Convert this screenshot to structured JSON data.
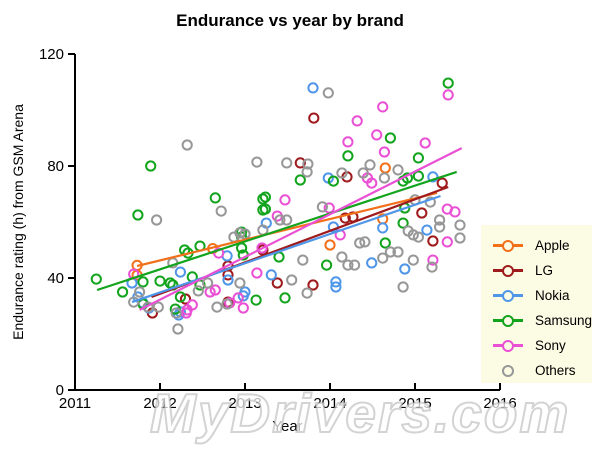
{
  "watermark": {
    "text": "MyDrivers.com"
  },
  "chart_data": {
    "type": "scatter",
    "title": "Endurance vs year by brand",
    "xlabel": "Year",
    "ylabel": "Endurance rating (h) from GSM Arena",
    "xlim": [
      2011,
      2016
    ],
    "ylim": [
      0,
      120
    ],
    "x_ticks": [
      "2011",
      "2012",
      "2013",
      "2014",
      "2015",
      "2016"
    ],
    "y_ticks": [
      "0",
      "40",
      "80",
      "120"
    ],
    "grid": false,
    "marker": "open-circle",
    "legend_position": "right",
    "legend_bg": "#FCFBE4",
    "series": [
      {
        "name": "Apple",
        "color": "#F3701B",
        "legend_has_line": true,
        "trend": [
          [
            2011.73,
            44.3
          ],
          [
            2015.26,
            70.4
          ]
        ],
        "points": [
          [
            2011.73,
            44.5
          ],
          [
            2011.73,
            41.0
          ],
          [
            2012.62,
            50.5
          ],
          [
            2014.0,
            51.8
          ],
          [
            2014.62,
            61.1
          ],
          [
            2014.65,
            79.3
          ]
        ]
      },
      {
        "name": "LG",
        "color": "#9E1A1C",
        "legend_has_line": true,
        "trend": [
          [
            2011.9,
            33.2
          ],
          [
            2015.39,
            72.5
          ]
        ],
        "points": [
          [
            2011.91,
            27.5
          ],
          [
            2012.3,
            32.5
          ],
          [
            2012.8,
            44.3
          ],
          [
            2012.8,
            41.1
          ],
          [
            2012.8,
            31.4
          ],
          [
            2013.21,
            50.0
          ],
          [
            2013.38,
            38.2
          ],
          [
            2013.65,
            81.1
          ],
          [
            2013.8,
            37.5
          ],
          [
            2013.81,
            97.1
          ],
          [
            2014.18,
            61.4
          ],
          [
            2014.27,
            61.8
          ],
          [
            2014.2,
            76.1
          ],
          [
            2015.08,
            63.2
          ],
          [
            2015.21,
            53.2
          ],
          [
            2015.32,
            73.9
          ]
        ]
      },
      {
        "name": "Nokia",
        "color": "#4F96E8",
        "legend_has_line": true,
        "trend": [
          [
            2011.67,
            31.4
          ],
          [
            2015.3,
            69.3
          ]
        ],
        "points": [
          [
            2011.67,
            38.2
          ],
          [
            2011.74,
            33.2
          ],
          [
            2011.8,
            31.1
          ],
          [
            2011.87,
            29.3
          ],
          [
            2012.22,
            26.8
          ],
          [
            2012.24,
            42.1
          ],
          [
            2012.24,
            27.9
          ],
          [
            2012.79,
            47.9
          ],
          [
            2012.8,
            39.3
          ],
          [
            2012.98,
            33.6
          ],
          [
            2013.0,
            35.0
          ],
          [
            2013.25,
            59.6
          ],
          [
            2013.31,
            41.1
          ],
          [
            2013.8,
            107.9
          ],
          [
            2013.98,
            75.7
          ],
          [
            2014.04,
            58.2
          ],
          [
            2014.07,
            38.6
          ],
          [
            2014.07,
            36.8
          ],
          [
            2014.49,
            45.4
          ],
          [
            2014.62,
            57.9
          ],
          [
            2014.88,
            43.2
          ],
          [
            2015.14,
            57.1
          ],
          [
            2015.21,
            76.1
          ]
        ]
      },
      {
        "name": "Samsung",
        "color": "#12A41D",
        "legend_has_line": true,
        "trend": [
          [
            2011.26,
            35.7
          ],
          [
            2015.49,
            77.9
          ]
        ],
        "points": [
          [
            2011.25,
            39.6
          ],
          [
            2011.56,
            35.0
          ],
          [
            2011.74,
            62.5
          ],
          [
            2011.8,
            38.6
          ],
          [
            2011.8,
            30.7
          ],
          [
            2011.89,
            80.0
          ],
          [
            2012.0,
            38.9
          ],
          [
            2012.12,
            38.2
          ],
          [
            2012.15,
            37.5
          ],
          [
            2012.18,
            28.9
          ],
          [
            2012.24,
            33.2
          ],
          [
            2012.29,
            50.0
          ],
          [
            2012.33,
            48.9
          ],
          [
            2012.38,
            40.4
          ],
          [
            2012.47,
            51.4
          ],
          [
            2012.47,
            37.5
          ],
          [
            2012.65,
            68.6
          ],
          [
            2012.96,
            56.4
          ],
          [
            2012.96,
            54.6
          ],
          [
            2012.96,
            50.7
          ],
          [
            2012.98,
            48.2
          ],
          [
            2013.13,
            32.1
          ],
          [
            2013.21,
            68.2
          ],
          [
            2013.21,
            64.3
          ],
          [
            2013.24,
            68.9
          ],
          [
            2013.24,
            64.6
          ],
          [
            2013.4,
            47.5
          ],
          [
            2013.47,
            32.9
          ],
          [
            2013.65,
            75.0
          ],
          [
            2013.96,
            44.6
          ],
          [
            2014.04,
            74.6
          ],
          [
            2014.21,
            83.6
          ],
          [
            2014.65,
            52.5
          ],
          [
            2014.71,
            90.0
          ],
          [
            2014.86,
            74.6
          ],
          [
            2014.86,
            59.6
          ],
          [
            2014.88,
            65.0
          ],
          [
            2014.91,
            75.7
          ],
          [
            2015.04,
            82.9
          ],
          [
            2015.04,
            76.4
          ],
          [
            2015.39,
            109.6
          ]
        ]
      },
      {
        "name": "Sony",
        "color": "#EA50D4",
        "legend_has_line": true,
        "trend": [
          [
            2011.76,
            28.6
          ],
          [
            2015.55,
            86.4
          ]
        ],
        "points": [
          [
            2011.69,
            41.4
          ],
          [
            2012.31,
            27.5
          ],
          [
            2012.32,
            28.6
          ],
          [
            2012.38,
            30.4
          ],
          [
            2012.59,
            35.0
          ],
          [
            2012.65,
            35.7
          ],
          [
            2012.69,
            48.9
          ],
          [
            2012.82,
            31.1
          ],
          [
            2012.92,
            32.9
          ],
          [
            2012.98,
            29.3
          ],
          [
            2013.14,
            41.8
          ],
          [
            2013.2,
            50.7
          ],
          [
            2013.38,
            62.1
          ],
          [
            2013.47,
            67.9
          ],
          [
            2013.99,
            65.0
          ],
          [
            2014.12,
            55.4
          ],
          [
            2014.21,
            88.6
          ],
          [
            2014.32,
            96.1
          ],
          [
            2014.44,
            75.7
          ],
          [
            2014.49,
            73.9
          ],
          [
            2014.55,
            91.1
          ],
          [
            2014.62,
            101.1
          ],
          [
            2014.64,
            85.0
          ],
          [
            2015.12,
            88.2
          ],
          [
            2015.21,
            46.4
          ],
          [
            2015.38,
            64.6
          ],
          [
            2015.38,
            52.9
          ],
          [
            2015.39,
            105.4
          ],
          [
            2015.47,
            63.6
          ]
        ]
      },
      {
        "name": "Others",
        "color": "#979797",
        "legend_has_line": false,
        "trend": null,
        "points": [
          [
            2011.69,
            31.4
          ],
          [
            2011.76,
            35.0
          ],
          [
            2011.86,
            29.6
          ],
          [
            2011.96,
            60.7
          ],
          [
            2011.98,
            29.6
          ],
          [
            2012.15,
            45.4
          ],
          [
            2012.19,
            27.5
          ],
          [
            2012.21,
            21.8
          ],
          [
            2012.32,
            87.5
          ],
          [
            2012.45,
            35.4
          ],
          [
            2012.56,
            38.2
          ],
          [
            2012.67,
            29.6
          ],
          [
            2012.72,
            63.9
          ],
          [
            2012.79,
            30.7
          ],
          [
            2012.87,
            54.6
          ],
          [
            2012.94,
            56.1
          ],
          [
            2012.94,
            38.2
          ],
          [
            2013.0,
            55.7
          ],
          [
            2013.14,
            81.4
          ],
          [
            2013.21,
            57.1
          ],
          [
            2013.41,
            60.7
          ],
          [
            2013.49,
            81.1
          ],
          [
            2013.49,
            60.7
          ],
          [
            2013.55,
            39.3
          ],
          [
            2013.68,
            46.4
          ],
          [
            2013.73,
            77.9
          ],
          [
            2013.73,
            34.6
          ],
          [
            2013.74,
            80.7
          ],
          [
            2013.91,
            65.4
          ],
          [
            2013.98,
            106.1
          ],
          [
            2014.14,
            77.5
          ],
          [
            2014.14,
            47.5
          ],
          [
            2014.21,
            44.6
          ],
          [
            2014.29,
            44.6
          ],
          [
            2014.35,
            52.5
          ],
          [
            2014.39,
            77.5
          ],
          [
            2014.41,
            52.9
          ],
          [
            2014.47,
            80.4
          ],
          [
            2014.62,
            47.1
          ],
          [
            2014.64,
            75.7
          ],
          [
            2014.71,
            49.3
          ],
          [
            2014.8,
            78.6
          ],
          [
            2014.8,
            49.3
          ],
          [
            2014.86,
            36.8
          ],
          [
            2014.92,
            56.8
          ],
          [
            2014.98,
            55.4
          ],
          [
            2014.98,
            46.4
          ],
          [
            2015.0,
            67.9
          ],
          [
            2015.04,
            54.6
          ],
          [
            2015.18,
            67.1
          ],
          [
            2015.2,
            43.9
          ],
          [
            2015.29,
            60.7
          ],
          [
            2015.29,
            58.2
          ],
          [
            2015.53,
            58.9
          ],
          [
            2015.53,
            54.3
          ]
        ]
      }
    ]
  }
}
